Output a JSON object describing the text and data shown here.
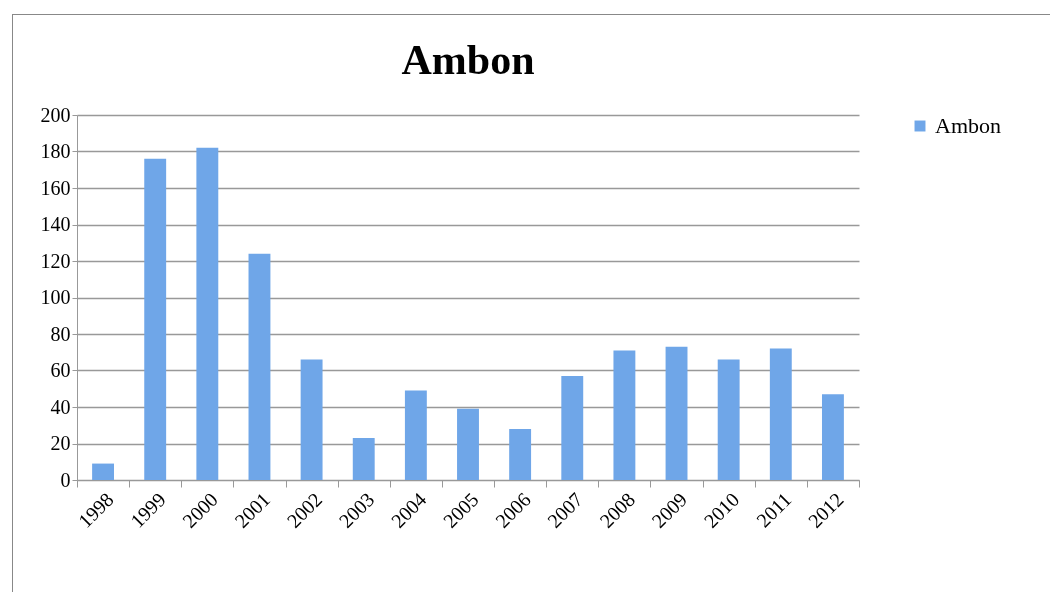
{
  "chart_data": {
    "type": "bar",
    "title": "Ambon",
    "categories": [
      "1998",
      "1999",
      "2000",
      "2001",
      "2002",
      "2003",
      "2004",
      "2005",
      "2006",
      "2007",
      "2008",
      "2009",
      "2010",
      "2011",
      "2012"
    ],
    "series": [
      {
        "name": "Ambon",
        "color": "#6fa6e8",
        "values": [
          9,
          176,
          182,
          124,
          66,
          23,
          49,
          39,
          28,
          57,
          71,
          73,
          66,
          72,
          47
        ]
      }
    ],
    "ylim": [
      0,
      200
    ],
    "yticks": [
      0,
      20,
      40,
      60,
      80,
      100,
      120,
      140,
      160,
      180,
      200
    ],
    "grid": "y",
    "legend": "right"
  }
}
